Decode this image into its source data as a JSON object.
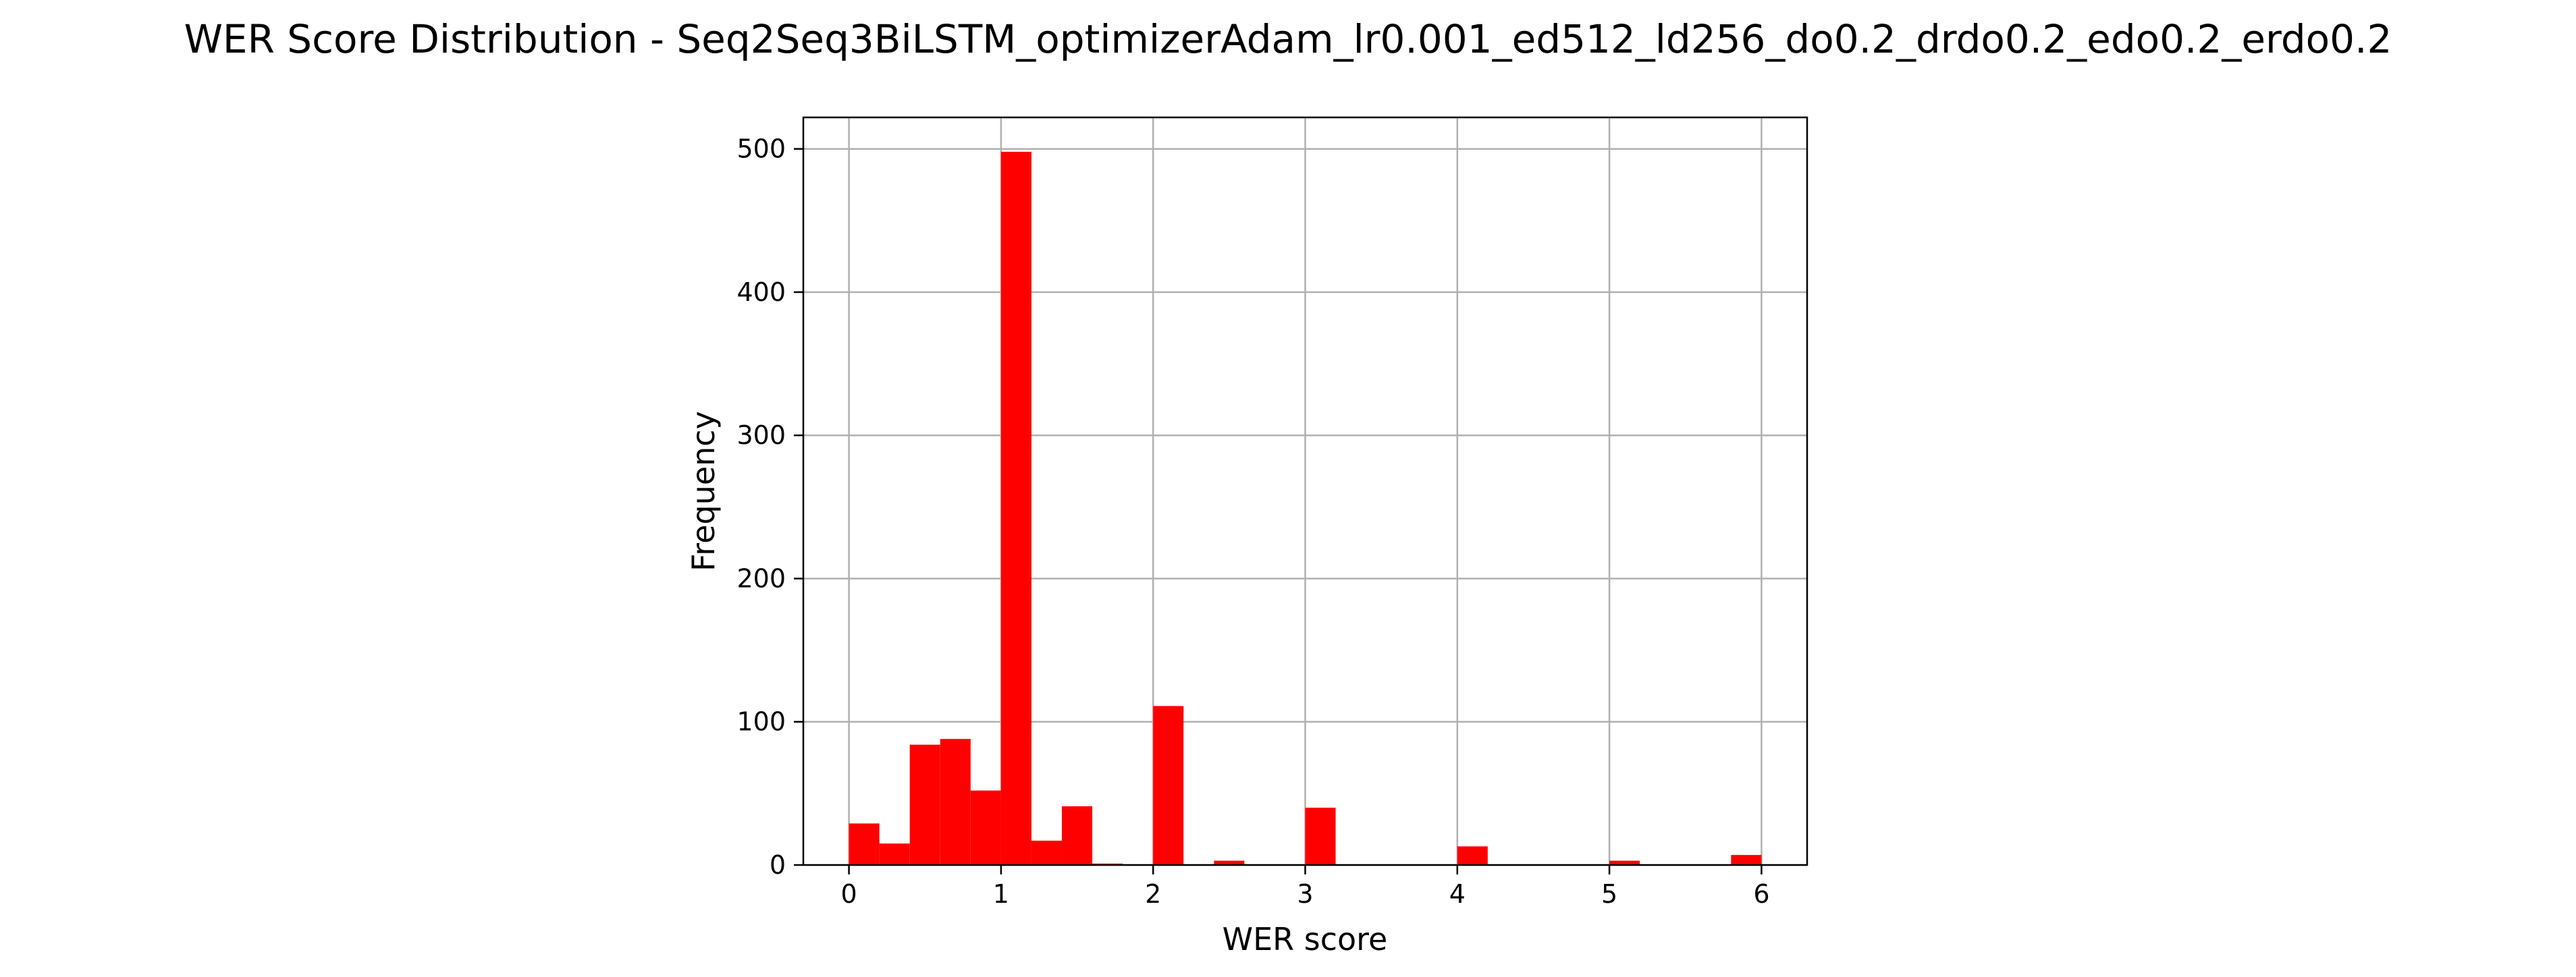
{
  "chart_data": {
    "type": "bar",
    "title": "WER Score Distribution - Seq2Seq3BiLSTM_optimizerAdam_lr0.001_ed512_ld256_do0.2_drdo0.2_edo0.2_erdo0.2",
    "xlabel": "WER score",
    "ylabel": "Frequency",
    "xlim": [
      -0.3,
      6.3
    ],
    "ylim": [
      0,
      522
    ],
    "xticks": [
      0,
      1,
      2,
      3,
      4,
      5,
      6
    ],
    "yticks": [
      0,
      100,
      200,
      300,
      400,
      500
    ],
    "grid": true,
    "bar_color": "#ff0000",
    "bin_width": 0.2,
    "bin_starts": [
      0.0,
      0.2,
      0.4,
      0.6,
      0.8,
      1.0,
      1.2,
      1.4,
      1.6,
      1.8,
      2.0,
      2.2,
      2.4,
      2.6,
      2.8,
      3.0,
      3.2,
      3.4,
      3.6,
      3.8,
      4.0,
      4.2,
      4.4,
      4.6,
      4.8,
      5.0,
      5.2,
      5.4,
      5.6,
      5.8
    ],
    "values": [
      29,
      15,
      84,
      88,
      52,
      498,
      17,
      41,
      1,
      0,
      111,
      0,
      3,
      0,
      0,
      40,
      0,
      0,
      0,
      0,
      13,
      0,
      0,
      0,
      0,
      3,
      0,
      0,
      0,
      7
    ]
  }
}
